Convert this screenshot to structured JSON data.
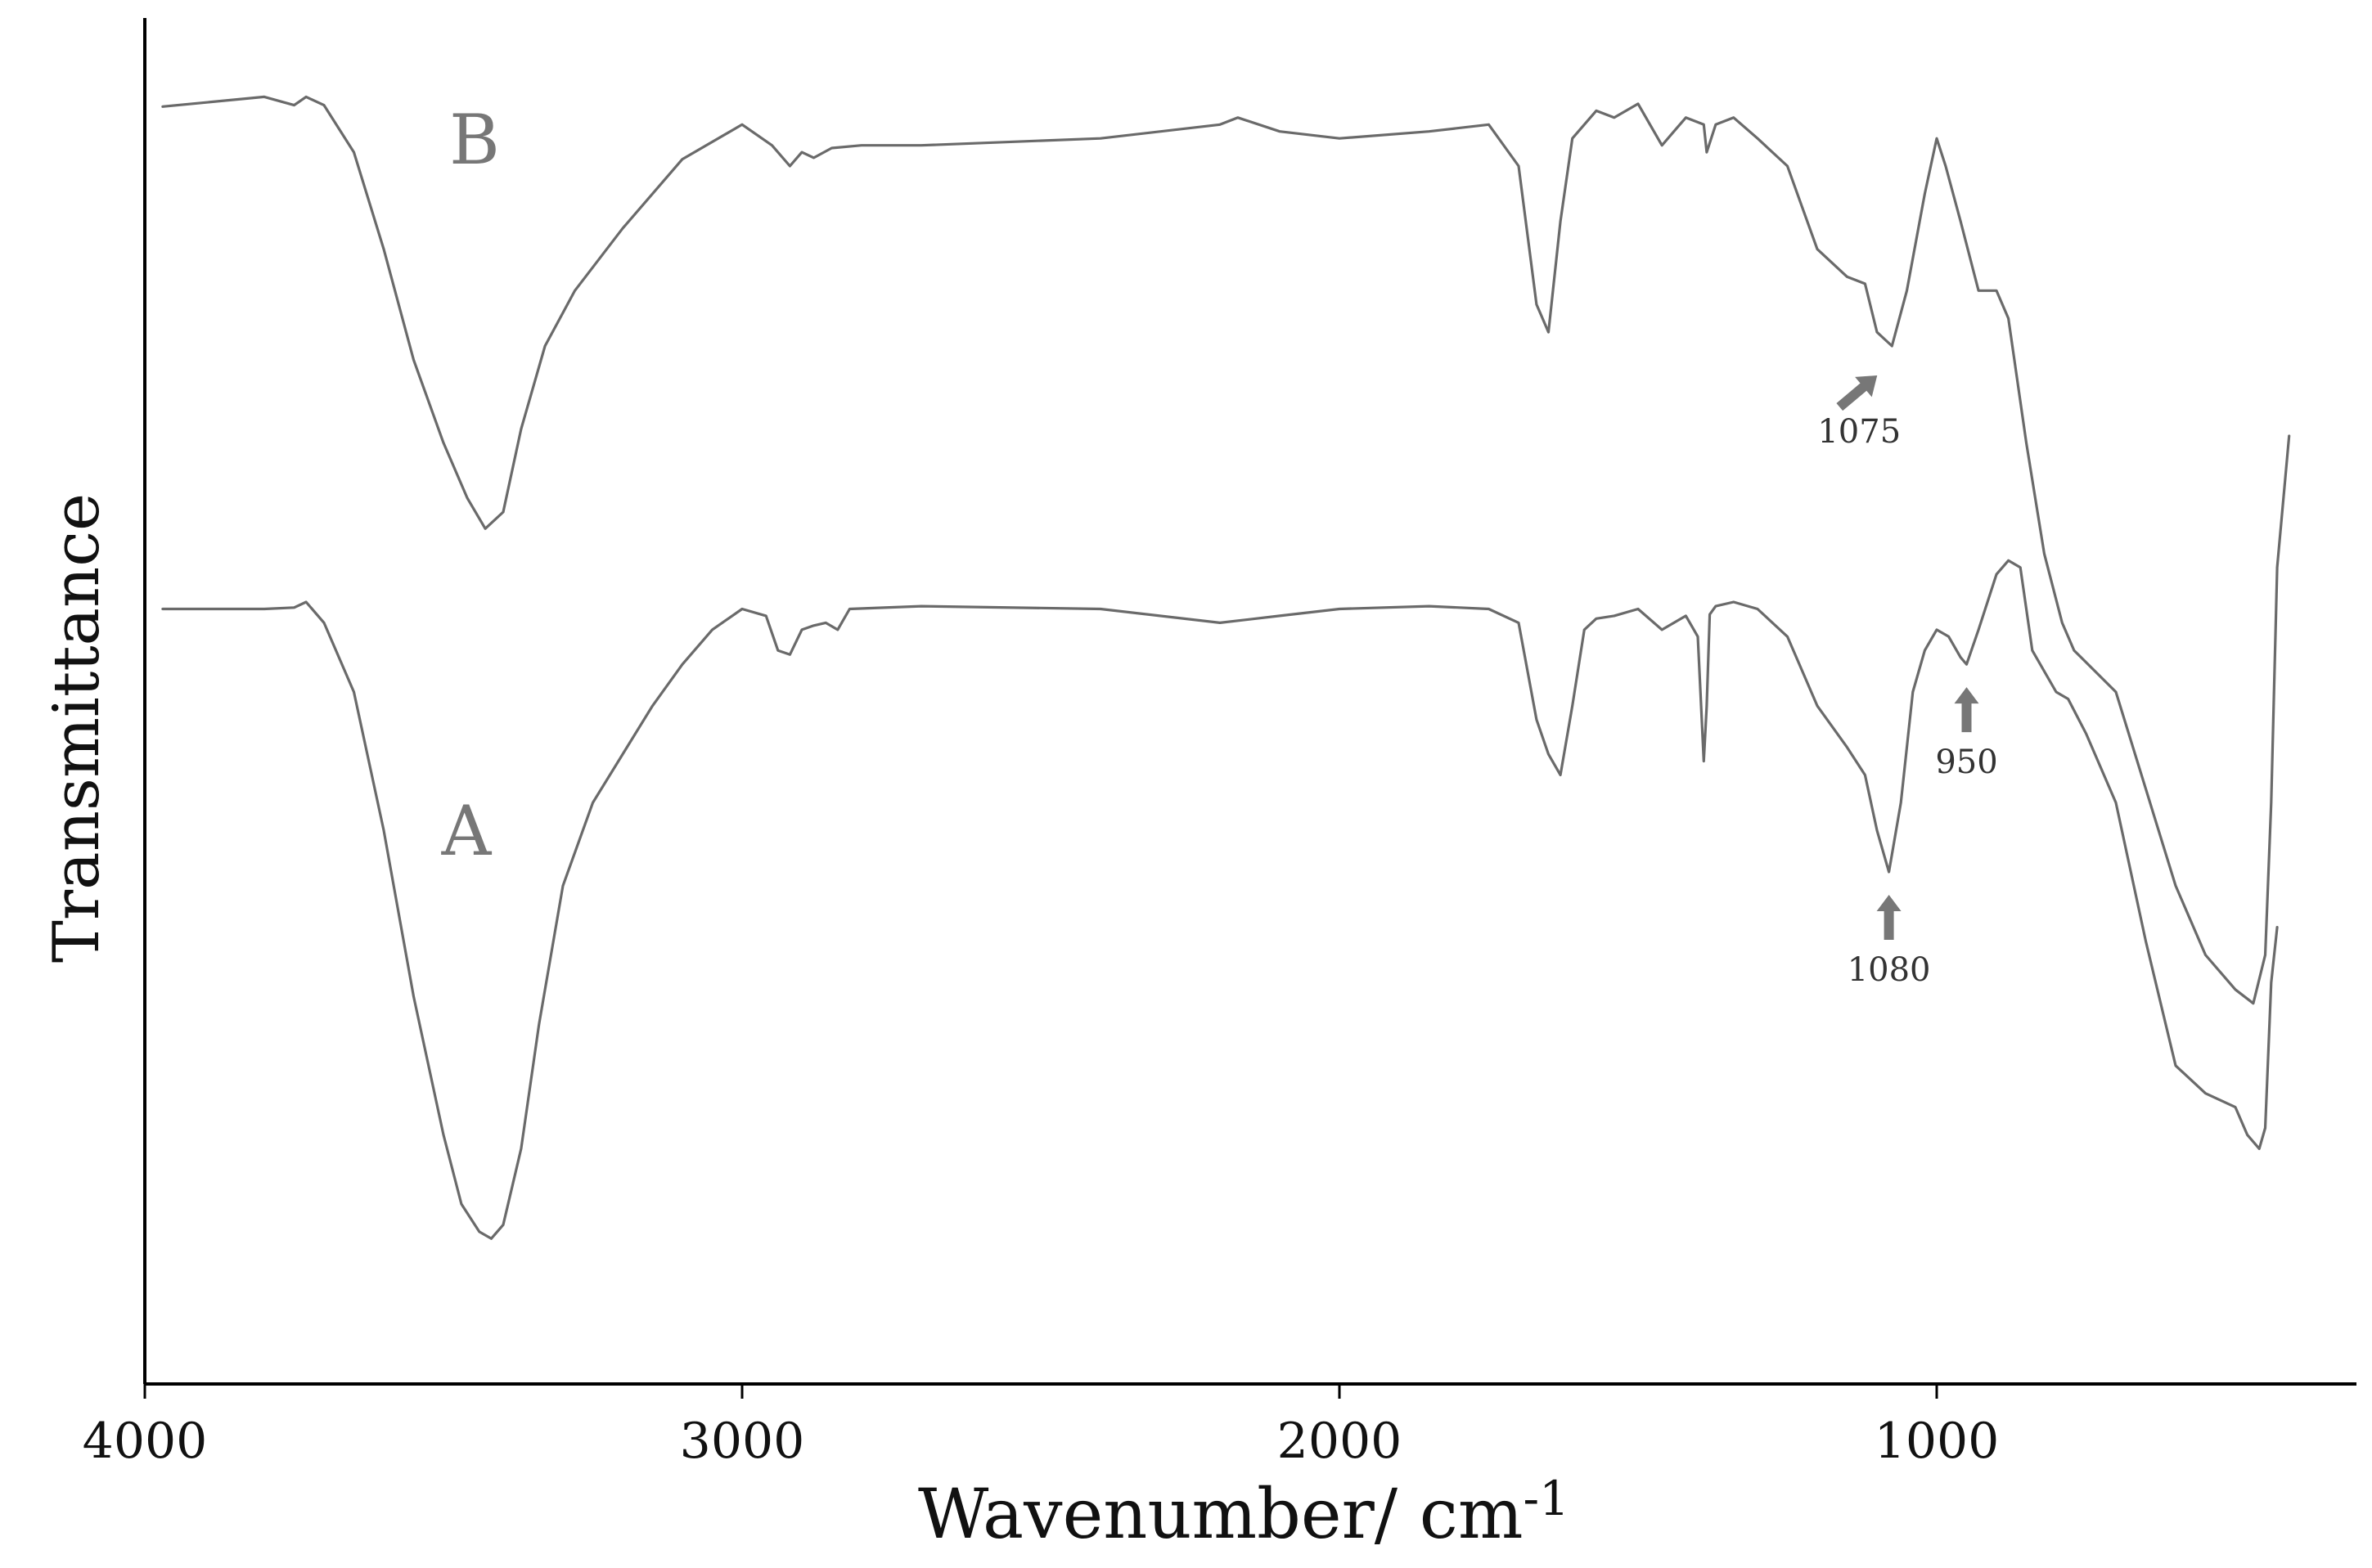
{
  "chart_data": {
    "type": "line",
    "xlabel": "Wavenumber/ cm",
    "xlabel_sup": "-1",
    "ylabel": "Transmittance",
    "xlim": [
      4000,
      380
    ],
    "x_reversed": true,
    "x_ticks": [
      4000,
      3000,
      2000,
      1000
    ],
    "y_tick_labels": "none",
    "grid": false,
    "series": [
      {
        "label": "B",
        "x": [
          3970,
          3800,
          3750,
          3730,
          3700,
          3650,
          3600,
          3550,
          3500,
          3460,
          3430,
          3400,
          3370,
          3330,
          3280,
          3200,
          3100,
          3000,
          2950,
          2920,
          2900,
          2880,
          2850,
          2800,
          2700,
          2400,
          2200,
          2170,
          2100,
          2000,
          1850,
          1750,
          1700,
          1670,
          1650,
          1630,
          1610,
          1590,
          1570,
          1540,
          1500,
          1460,
          1440,
          1420,
          1390,
          1385,
          1370,
          1340,
          1300,
          1250,
          1200,
          1150,
          1120,
          1100,
          1075,
          1050,
          1020,
          1000,
          985,
          960,
          930,
          900,
          880,
          850,
          820,
          790,
          770,
          700,
          650,
          600,
          550,
          500,
          470,
          450,
          440,
          430,
          410
        ],
        "transmittance": [
          0.923,
          0.93,
          0.924,
          0.93,
          0.924,
          0.89,
          0.82,
          0.74,
          0.68,
          0.64,
          0.618,
          0.63,
          0.69,
          0.75,
          0.79,
          0.835,
          0.885,
          0.91,
          0.895,
          0.88,
          0.89,
          0.886,
          0.893,
          0.895,
          0.895,
          0.9,
          0.91,
          0.915,
          0.905,
          0.9,
          0.905,
          0.91,
          0.88,
          0.78,
          0.76,
          0.84,
          0.9,
          0.91,
          0.92,
          0.915,
          0.925,
          0.895,
          0.905,
          0.915,
          0.91,
          0.89,
          0.91,
          0.915,
          0.9,
          0.88,
          0.82,
          0.8,
          0.795,
          0.76,
          0.75,
          0.79,
          0.86,
          0.9,
          0.88,
          0.84,
          0.79,
          0.79,
          0.77,
          0.68,
          0.6,
          0.55,
          0.53,
          0.5,
          0.43,
          0.36,
          0.31,
          0.285,
          0.275,
          0.31,
          0.42,
          0.59,
          0.685
        ]
      },
      {
        "label": "A",
        "x": [
          3970,
          3800,
          3750,
          3730,
          3700,
          3650,
          3600,
          3550,
          3500,
          3470,
          3440,
          3420,
          3400,
          3370,
          3340,
          3300,
          3250,
          3200,
          3150,
          3100,
          3050,
          3000,
          2960,
          2940,
          2920,
          2900,
          2880,
          2860,
          2840,
          2820,
          2700,
          2400,
          2200,
          2100,
          2000,
          1850,
          1750,
          1700,
          1670,
          1650,
          1630,
          1610,
          1590,
          1570,
          1540,
          1500,
          1460,
          1440,
          1420,
          1400,
          1390,
          1385,
          1380,
          1370,
          1340,
          1300,
          1250,
          1200,
          1150,
          1120,
          1100,
          1080,
          1060,
          1040,
          1020,
          1000,
          980,
          960,
          950,
          930,
          900,
          880,
          860,
          840,
          800,
          780,
          750,
          700,
          650,
          600,
          550,
          500,
          480,
          460,
          450,
          440,
          430
        ],
        "transmittance": [
          0.56,
          0.56,
          0.561,
          0.565,
          0.55,
          0.5,
          0.4,
          0.28,
          0.18,
          0.13,
          0.11,
          0.105,
          0.115,
          0.17,
          0.26,
          0.36,
          0.42,
          0.455,
          0.49,
          0.52,
          0.545,
          0.56,
          0.555,
          0.53,
          0.527,
          0.545,
          0.548,
          0.55,
          0.545,
          0.56,
          0.562,
          0.56,
          0.55,
          0.555,
          0.56,
          0.562,
          0.56,
          0.55,
          0.48,
          0.455,
          0.44,
          0.49,
          0.545,
          0.553,
          0.555,
          0.56,
          0.545,
          0.55,
          0.555,
          0.54,
          0.45,
          0.49,
          0.556,
          0.562,
          0.565,
          0.56,
          0.54,
          0.49,
          0.46,
          0.44,
          0.4,
          0.37,
          0.42,
          0.5,
          0.53,
          0.545,
          0.54,
          0.525,
          0.52,
          0.545,
          0.585,
          0.595,
          0.59,
          0.53,
          0.5,
          0.495,
          0.47,
          0.42,
          0.32,
          0.23,
          0.21,
          0.2,
          0.18,
          0.17,
          0.185,
          0.29,
          0.33
        ]
      }
    ],
    "annotations": [
      {
        "label": "1075",
        "x": 1075,
        "series": "B",
        "arrow": "diagonal"
      },
      {
        "label": "1080",
        "x": 1080,
        "series": "A",
        "arrow": "up"
      },
      {
        "label": "950",
        "x": 950,
        "series": "A",
        "arrow": "up"
      }
    ]
  }
}
